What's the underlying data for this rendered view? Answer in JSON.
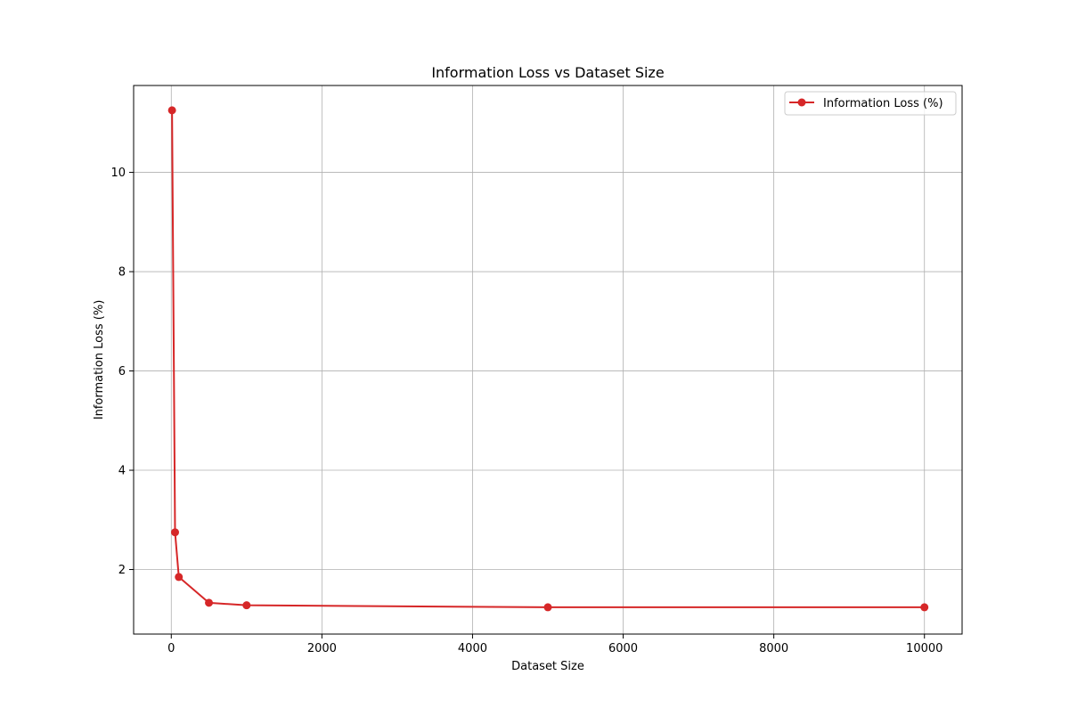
{
  "chart_data": {
    "type": "line",
    "title": "Information Loss vs Dataset Size",
    "xlabel": "Dataset Size",
    "ylabel": "Information Loss (%)",
    "xlim": [
      -500,
      10500
    ],
    "ylim": [
      0.7,
      11.75
    ],
    "xticks": [
      0,
      2000,
      4000,
      6000,
      8000,
      10000
    ],
    "yticks": [
      2,
      4,
      6,
      8,
      10
    ],
    "grid": true,
    "legend_position": "top-right",
    "series": [
      {
        "name": "Information Loss (%)",
        "color": "#d62728",
        "marker": "circle",
        "x": [
          10,
          50,
          100,
          500,
          1000,
          5000,
          10000
        ],
        "y": [
          11.25,
          2.75,
          1.85,
          1.33,
          1.28,
          1.24,
          1.24
        ]
      }
    ]
  }
}
